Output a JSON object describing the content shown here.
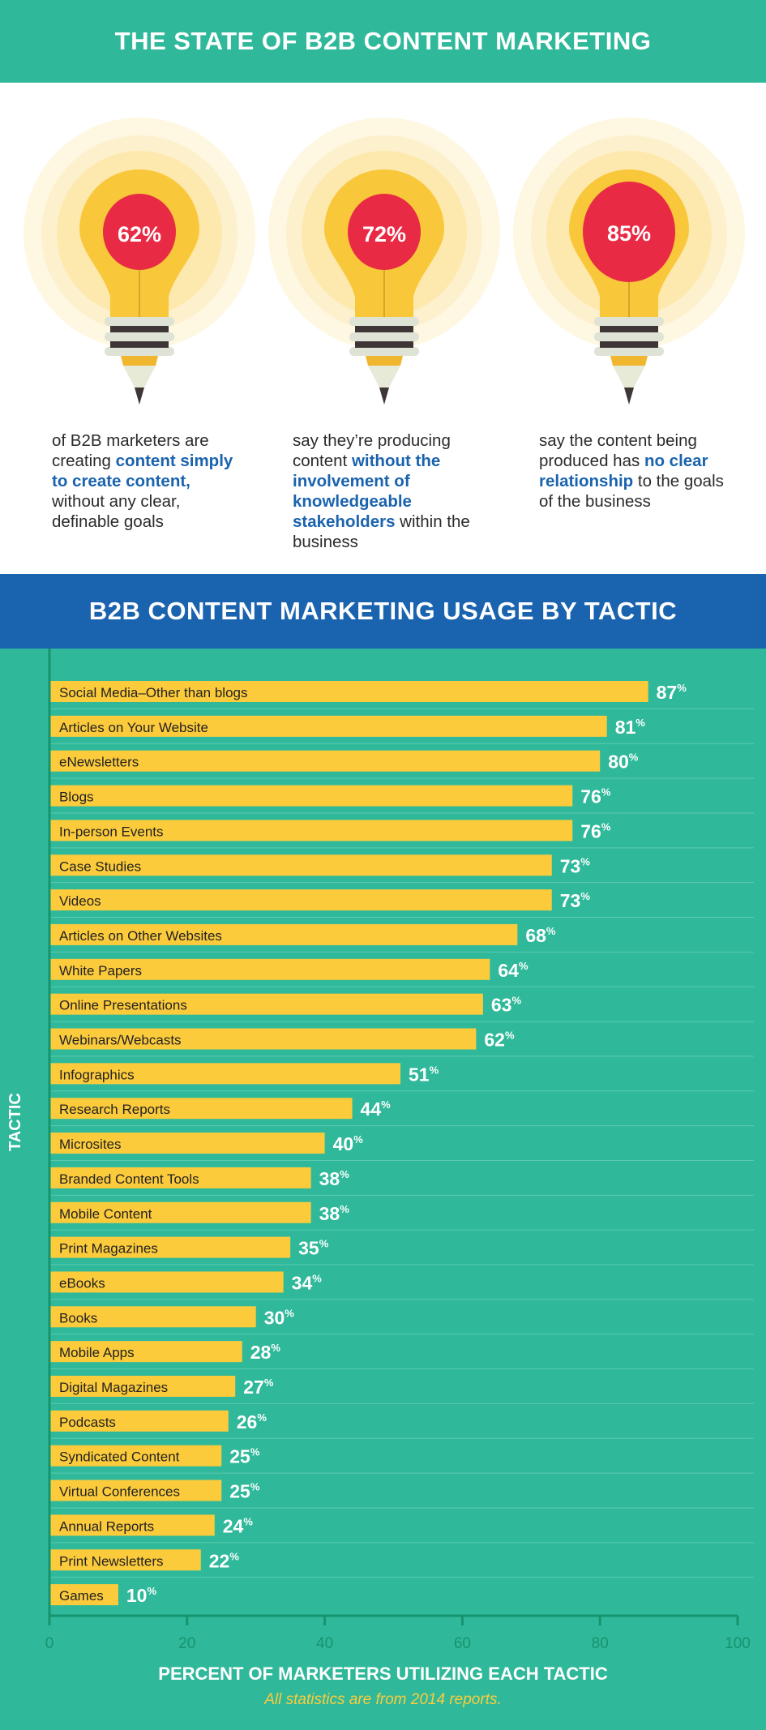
{
  "header": {
    "title": "THE STATE OF B2B CONTENT MARKETING"
  },
  "stats": [
    {
      "value": "62%",
      "parts": [
        {
          "t": "of B2B marketers are creating ",
          "h": false
        },
        {
          "t": "content simply to create content,",
          "h": true
        },
        {
          "t": " without any clear, definable goals",
          "h": false
        }
      ]
    },
    {
      "value": "72%",
      "parts": [
        {
          "t": "say they’re producing content ",
          "h": false
        },
        {
          "t": "without the involvement of knowledgeable stakeholders",
          "h": true
        },
        {
          "t": " within the business",
          "h": false
        }
      ]
    },
    {
      "value": "85%",
      "parts": [
        {
          "t": "say the content being produced has ",
          "h": false
        },
        {
          "t": "no clear relationship",
          "h": true
        },
        {
          "t": " to the goals of the business",
          "h": false
        }
      ]
    }
  ],
  "section2": {
    "title": "B2B CONTENT MARKETING USAGE BY TACTIC"
  },
  "colors": {
    "teal": "#2fb99a",
    "blue": "#1a63ae",
    "bar": "#fccb3c",
    "red": "#e92a45"
  },
  "chart_data": {
    "type": "bar",
    "orientation": "horizontal",
    "ylabel": "TACTIC",
    "xlabel": "PERCENT OF MARKETERS UTILIZING EACH TACTIC",
    "note": "All statistics are from 2014 reports.",
    "xlim": [
      0,
      100
    ],
    "xticks": [
      "0",
      "20",
      "40",
      "60",
      "80",
      "100"
    ],
    "categories": [
      "Social Media–Other than blogs",
      "Articles on Your Website",
      "eNewsletters",
      "Blogs",
      "In-person Events",
      "Case Studies",
      "Videos",
      "Articles on Other Websites",
      "White Papers",
      "Online Presentations",
      "Webinars/Webcasts",
      "Infographics",
      "Research Reports",
      "Microsites",
      "Branded Content Tools",
      "Mobile Content",
      "Print Magazines",
      "eBooks",
      "Books",
      "Mobile Apps",
      "Digital Magazines",
      "Podcasts",
      "Syndicated Content",
      "Virtual Conferences",
      "Annual Reports",
      "Print Newsletters",
      "Games"
    ],
    "values": [
      87,
      81,
      80,
      76,
      76,
      73,
      73,
      68,
      64,
      63,
      62,
      51,
      44,
      40,
      38,
      38,
      35,
      34,
      30,
      28,
      27,
      26,
      25,
      25,
      24,
      22,
      10
    ],
    "value_suffix": "%"
  }
}
